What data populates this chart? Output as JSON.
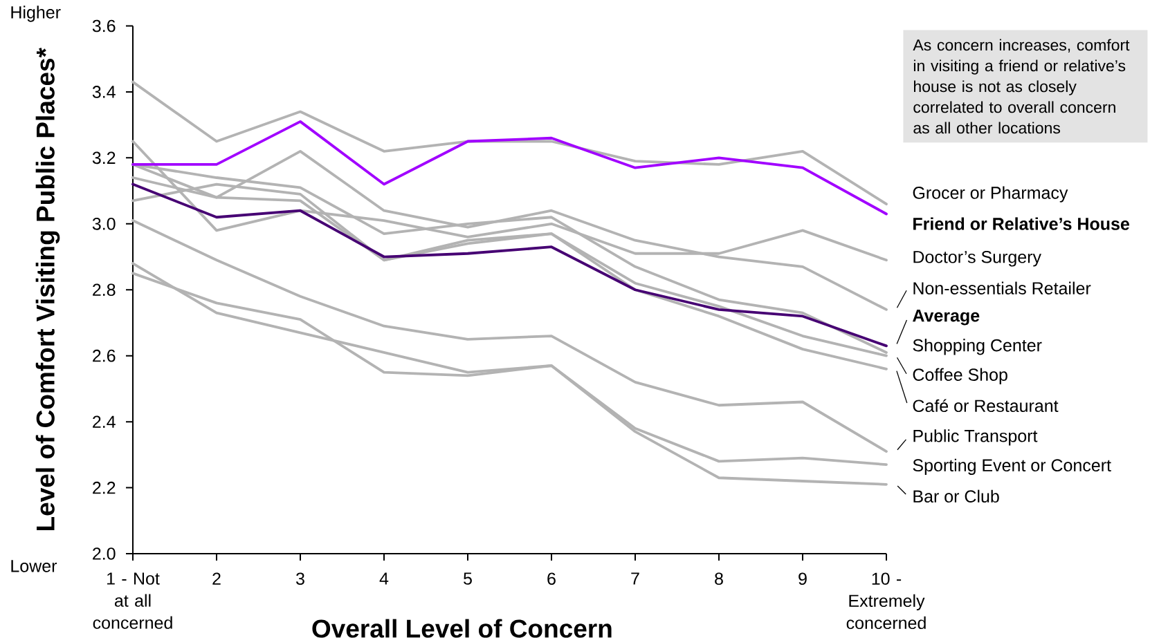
{
  "chart_data": {
    "type": "line",
    "xlabel": "Overall Level of Concern",
    "ylabel": "Level of Comfort Visiting Public Places*",
    "annotations": [
      "Higher",
      "Lower",
      "As concern increases, comfort in visiting a friend or relative’s house is not as closely correlated to overall concern as all other locations"
    ],
    "categories": [
      "1 - Not at all concerned",
      "2",
      "3",
      "4",
      "5",
      "6",
      "7",
      "8",
      "9",
      "10 - Extremely concerned"
    ],
    "ylim": [
      2,
      3.6
    ],
    "yticks": [
      {
        "value": 2,
        "label": "2.0"
      },
      2.2,
      2.4,
      2.6,
      2.8,
      {
        "value": 3,
        "label": "3.0"
      },
      3.2,
      3.4,
      3.6
    ],
    "series": [
      {
        "name": "Grocer or Pharmacy",
        "color": "#b3b3b3",
        "values": [
          3.43,
          3.25,
          3.34,
          3.22,
          3.25,
          3.25,
          3.19,
          3.18,
          3.22,
          3.06
        ]
      },
      {
        "name": "Friend or Relative’s House",
        "color": "#a100ff",
        "values": [
          3.18,
          3.18,
          3.31,
          3.12,
          3.25,
          3.26,
          3.17,
          3.2,
          3.17,
          3.03
        ]
      },
      {
        "name": "Doctor’s Surgery",
        "color": "#b3b3b3",
        "values": [
          3.25,
          2.98,
          3.04,
          3.01,
          2.96,
          3.0,
          2.91,
          2.91,
          2.98,
          2.89
        ]
      },
      {
        "name": "Non-essentials Retailer",
        "color": "#b3b3b3",
        "values": [
          3.18,
          3.08,
          3.22,
          3.04,
          2.99,
          3.04,
          2.95,
          2.9,
          2.87,
          2.74
        ]
      },
      {
        "name": "Average",
        "color": "#460073",
        "values": [
          3.12,
          3.02,
          3.04,
          2.9,
          2.91,
          2.93,
          2.8,
          2.74,
          2.72,
          2.63
        ]
      },
      {
        "name": "Shopping Center",
        "color": "#b3b3b3",
        "values": [
          3.18,
          3.14,
          3.11,
          2.97,
          3.0,
          3.02,
          2.87,
          2.77,
          2.73,
          2.61
        ]
      },
      {
        "name": "Coffee Shop",
        "color": "#b3b3b3",
        "values": [
          3.14,
          3.08,
          3.07,
          2.89,
          2.94,
          2.97,
          2.82,
          2.75,
          2.66,
          2.6
        ]
      },
      {
        "name": "Café or Restaurant",
        "color": "#b3b3b3",
        "values": [
          3.07,
          3.12,
          3.09,
          2.89,
          2.95,
          2.97,
          2.8,
          2.72,
          2.62,
          2.56
        ]
      },
      {
        "name": "Public Transport",
        "color": "#b3b3b3",
        "values": [
          3.01,
          2.89,
          2.78,
          2.69,
          2.65,
          2.66,
          2.52,
          2.45,
          2.46,
          2.31
        ]
      },
      {
        "name": "Sporting Event or Concert",
        "color": "#b3b3b3",
        "values": [
          2.88,
          2.73,
          2.67,
          2.61,
          2.55,
          2.57,
          2.38,
          2.28,
          2.29,
          2.27
        ]
      },
      {
        "name": "Bar or Club",
        "color": "#b3b3b3",
        "values": [
          2.85,
          2.76,
          2.71,
          2.55,
          2.54,
          2.57,
          2.37,
          2.23,
          2.22,
          2.21
        ]
      }
    ]
  }
}
